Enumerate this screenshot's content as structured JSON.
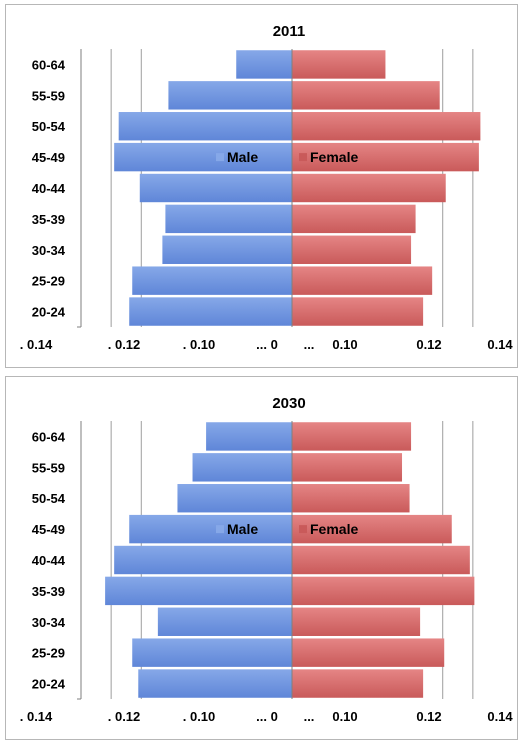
{
  "colors": {
    "male": "#86a8e8",
    "male_dark": "#5f86d8",
    "female": "#e58585",
    "female_dark": "#c95a5a",
    "grid": "#9e9e9e",
    "axis": "#7f7f7f"
  },
  "chart_data": [
    {
      "type": "bar",
      "orientation": "horizontal",
      "title": "2011",
      "categories": [
        "60-64",
        "55-59",
        "50-54",
        "45-49",
        "40-44",
        "35-39",
        "30-34",
        "25-29",
        "20-24"
      ],
      "series": [
        {
          "name": "Male",
          "values": [
            -0.037,
            -0.082,
            -0.115,
            -0.118,
            -0.101,
            -0.084,
            -0.086,
            -0.106,
            -0.108
          ]
        },
        {
          "name": "Female",
          "values": [
            0.062,
            0.098,
            0.125,
            0.124,
            0.102,
            0.082,
            0.079,
            0.093,
            0.087
          ]
        }
      ],
      "xlim": [
        -0.14,
        0.14
      ],
      "tick_labels": [
        ". 0.14",
        ". 0.12",
        ". 0.10",
        "... 0",
        "...",
        "0.10",
        "0.12",
        "0.14"
      ],
      "grid": true,
      "legend": [
        "Male",
        "Female"
      ]
    },
    {
      "type": "bar",
      "orientation": "horizontal",
      "title": "2030",
      "categories": [
        "60-64",
        "55-59",
        "50-54",
        "45-49",
        "40-44",
        "35-39",
        "30-34",
        "25-29",
        "20-24"
      ],
      "series": [
        {
          "name": "Male",
          "values": [
            -0.057,
            -0.066,
            -0.076,
            -0.108,
            -0.118,
            -0.124,
            -0.089,
            -0.106,
            -0.102
          ]
        },
        {
          "name": "Female",
          "values": [
            0.079,
            0.073,
            0.078,
            0.106,
            0.118,
            0.121,
            0.085,
            0.101,
            0.087
          ]
        }
      ],
      "xlim": [
        -0.14,
        0.14
      ],
      "tick_labels": [
        ". 0.14",
        ". 0.12",
        ". 0.10",
        "... 0",
        "...",
        "0.10",
        "0.12",
        "0.14"
      ],
      "grid": true,
      "legend": [
        "Male",
        "Female"
      ]
    }
  ]
}
